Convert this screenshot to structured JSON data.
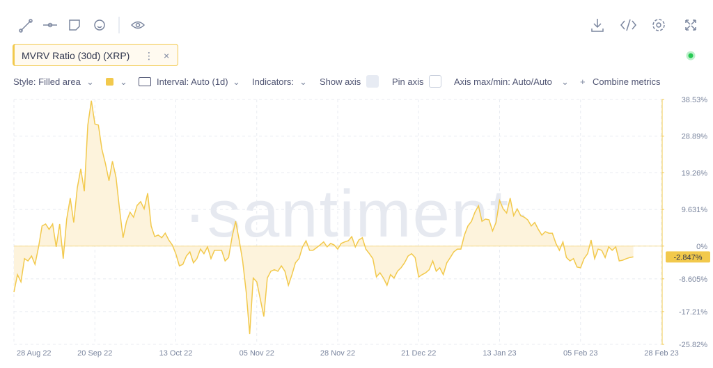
{
  "metric_chip": {
    "menu": "⋮",
    "close": "×"
  },
  "settings": {
    "style": "Style: Filled area",
    "interval": "Interval: Auto (1d)",
    "indicators": "Indicators:",
    "show_axis": "Show axis",
    "pin_axis": "Pin axis",
    "axis_range": "Axis max/min: Auto/Auto",
    "combine_plus": "+",
    "combine": "Combine metrics"
  },
  "chart_data": {
    "type": "area",
    "watermark": "·santiment·",
    "series": [
      {
        "name": "MVRV Ratio (30d) (XRP)",
        "color": "#f2c94c",
        "fill": "#fdf3dc",
        "values": [
          -12.1,
          -7.5,
          -9.4,
          -3.3,
          -3.9,
          -2.6,
          -4.8,
          -0.2,
          5.3,
          5.8,
          4.4,
          5.8,
          -0.2,
          5.8,
          -3.3,
          7.1,
          12.6,
          6.2,
          15.3,
          20.3,
          14.4,
          31.8,
          38.2,
          32.1,
          31.8,
          25.4,
          21.7,
          17.2,
          22.3,
          18.1,
          9.8,
          2.2,
          6.5,
          8.9,
          7.6,
          10.7,
          11.7,
          9.8,
          13.9,
          5.3,
          2.5,
          2.9,
          2.2,
          3.4,
          1.6,
          0.3,
          -2.0,
          -5.2,
          -4.8,
          -2.6,
          -1.5,
          -4.4,
          -3.3,
          -0.8,
          -2.0,
          -0.2,
          -3.3,
          -1.1,
          -1.1,
          -1.1,
          -3.9,
          -3.0,
          2.5,
          6.5,
          1.6,
          -3.9,
          -12.1,
          -23.1,
          -8.4,
          -9.4,
          -13.9,
          -18.5,
          -8.4,
          -6.6,
          -6.2,
          -6.6,
          -5.2,
          -6.6,
          -10.3,
          -7.5,
          -4.4,
          -3.3,
          -0.2,
          1.4,
          -1.1,
          -1.1,
          -0.4,
          0.3,
          1.1,
          -0.2,
          0.7,
          0.3,
          -0.8,
          0.7,
          1.1,
          1.4,
          2.5,
          -0.2,
          1.6,
          2.2,
          -0.8,
          -2.0,
          -3.3,
          -8.1,
          -7.0,
          -8.4,
          -10.3,
          -7.5,
          -8.4,
          -6.6,
          -5.7,
          -4.4,
          -2.6,
          -2.0,
          -3.0,
          -8.1,
          -7.5,
          -7.0,
          -6.2,
          -3.9,
          -6.6,
          -5.7,
          -7.5,
          -4.4,
          -3.0,
          -1.5,
          -0.8,
          -0.8,
          2.9,
          5.3,
          6.5,
          8.9,
          10.6,
          6.5,
          7.1,
          6.9,
          4.0,
          6.2,
          12.0,
          9.8,
          8.7,
          12.6,
          8.0,
          9.8,
          8.0,
          7.6,
          6.9,
          5.3,
          6.2,
          4.4,
          2.9,
          3.8,
          3.4,
          3.4,
          0.7,
          -1.1,
          1.1,
          -3.0,
          -3.9,
          -3.3,
          -5.5,
          -5.7,
          -3.3,
          -2.0,
          1.6,
          -3.3,
          -0.8,
          -1.1,
          -3.0,
          -0.2,
          -1.1,
          -0.2,
          -3.9,
          -3.7,
          -3.3,
          -3.0,
          -2.847
        ]
      }
    ],
    "x": [
      "2022-08-28",
      "2022-08-29",
      "2022-08-30",
      "2022-08-31",
      "2022-09-01",
      "2022-09-02",
      "2022-09-03",
      "2022-09-04",
      "2022-09-05",
      "2022-09-06",
      "2022-09-07",
      "2022-09-08",
      "2022-09-09",
      "2022-09-10",
      "2022-09-11",
      "2022-09-12",
      "2022-09-13",
      "2022-09-14",
      "2022-09-15",
      "2022-09-16",
      "2022-09-17",
      "2022-09-18",
      "2022-09-19",
      "2022-09-20",
      "2022-09-21",
      "2022-09-22",
      "2022-09-23",
      "2022-09-24",
      "2022-09-25",
      "2022-09-26",
      "2022-09-27",
      "2022-09-28",
      "2022-09-29",
      "2022-09-30",
      "2022-10-01",
      "2022-10-02",
      "2022-10-03",
      "2022-10-04",
      "2022-10-05",
      "2022-10-06",
      "2022-10-07",
      "2022-10-08",
      "2022-10-09",
      "2022-10-10",
      "2022-10-11",
      "2022-10-12",
      "2022-10-13",
      "2022-10-14",
      "2022-10-15",
      "2022-10-16",
      "2022-10-17",
      "2022-10-18",
      "2022-10-19",
      "2022-10-20",
      "2022-10-21",
      "2022-10-22",
      "2022-10-23",
      "2022-10-24",
      "2022-10-25",
      "2022-10-26",
      "2022-10-27",
      "2022-10-28",
      "2022-10-29",
      "2022-10-30",
      "2022-10-31",
      "2022-11-01",
      "2022-11-02",
      "2022-11-03",
      "2022-11-04",
      "2022-11-05",
      "2022-11-06",
      "2022-11-07",
      "2022-11-08",
      "2022-11-09",
      "2022-11-10",
      "2022-11-11",
      "2022-11-12",
      "2022-11-13",
      "2022-11-14",
      "2022-11-15",
      "2022-11-16",
      "2022-11-17",
      "2022-11-18",
      "2022-11-19",
      "2022-11-20",
      "2022-11-21",
      "2022-11-22",
      "2022-11-23",
      "2022-11-24",
      "2022-11-25",
      "2022-11-26",
      "2022-11-27",
      "2022-11-28",
      "2022-11-29",
      "2022-11-30",
      "2022-12-01",
      "2022-12-02",
      "2022-12-03",
      "2022-12-04",
      "2022-12-05",
      "2022-12-06",
      "2022-12-07",
      "2022-12-08",
      "2022-12-09",
      "2022-12-10",
      "2022-12-11",
      "2022-12-12",
      "2022-12-13",
      "2022-12-14",
      "2022-12-15",
      "2022-12-16",
      "2022-12-17",
      "2022-12-18",
      "2022-12-19",
      "2022-12-20",
      "2022-12-21",
      "2022-12-22",
      "2022-12-23",
      "2022-12-24",
      "2022-12-25",
      "2022-12-26",
      "2022-12-27",
      "2022-12-28",
      "2022-12-29",
      "2022-12-30",
      "2022-12-31",
      "2023-01-01",
      "2023-01-02",
      "2023-01-03",
      "2023-01-04",
      "2023-01-05",
      "2023-01-06",
      "2023-01-07",
      "2023-01-08",
      "2023-01-09",
      "2023-01-10",
      "2023-01-11",
      "2023-01-12",
      "2023-01-13",
      "2023-01-14",
      "2023-01-15",
      "2023-01-16",
      "2023-01-17",
      "2023-01-18",
      "2023-01-19",
      "2023-01-20",
      "2023-01-21",
      "2023-01-22",
      "2023-01-23",
      "2023-01-24",
      "2023-01-25",
      "2023-01-26",
      "2023-01-27",
      "2023-01-28",
      "2023-01-29",
      "2023-01-30",
      "2023-01-31",
      "2023-02-01",
      "2023-02-02",
      "2023-02-03",
      "2023-02-04",
      "2023-02-05",
      "2023-02-06",
      "2023-02-07",
      "2023-02-08",
      "2023-02-09",
      "2023-02-10",
      "2023-02-11",
      "2023-02-12",
      "2023-02-13",
      "2023-02-14",
      "2023-02-15",
      "2023-02-16",
      "2023-02-17",
      "2023-02-18",
      "2023-02-19",
      "2023-02-20"
    ],
    "xlim": [
      "2022-08-28",
      "2023-02-28"
    ],
    "xticks": [
      {
        "value": "2022-08-28",
        "label": "28 Aug 22"
      },
      {
        "value": "2022-09-20",
        "label": "20 Sep 22"
      },
      {
        "value": "2022-10-13",
        "label": "13 Oct 22"
      },
      {
        "value": "2022-11-05",
        "label": "05 Nov 22"
      },
      {
        "value": "2022-11-28",
        "label": "28 Nov 22"
      },
      {
        "value": "2022-12-21",
        "label": "21 Dec 22"
      },
      {
        "value": "2023-01-13",
        "label": "13 Jan 23"
      },
      {
        "value": "2023-02-05",
        "label": "05 Feb 23"
      },
      {
        "value": "2023-02-28",
        "label": "28 Feb 23"
      }
    ],
    "ylim": [
      -25.82,
      38.53
    ],
    "yticks": [
      {
        "value": 38.53,
        "label": "38.53%"
      },
      {
        "value": 28.89,
        "label": "28.89%"
      },
      {
        "value": 19.26,
        "label": "19.26%"
      },
      {
        "value": 9.631,
        "label": "9.631%"
      },
      {
        "value": 0,
        "label": "0%"
      },
      {
        "value": -8.605,
        "label": "-8.605%"
      },
      {
        "value": -17.21,
        "label": "-17.21%"
      },
      {
        "value": -25.82,
        "label": "-25.82%"
      }
    ],
    "grid": true,
    "current_value": {
      "value": -2.847,
      "label": "-2.847%"
    }
  }
}
